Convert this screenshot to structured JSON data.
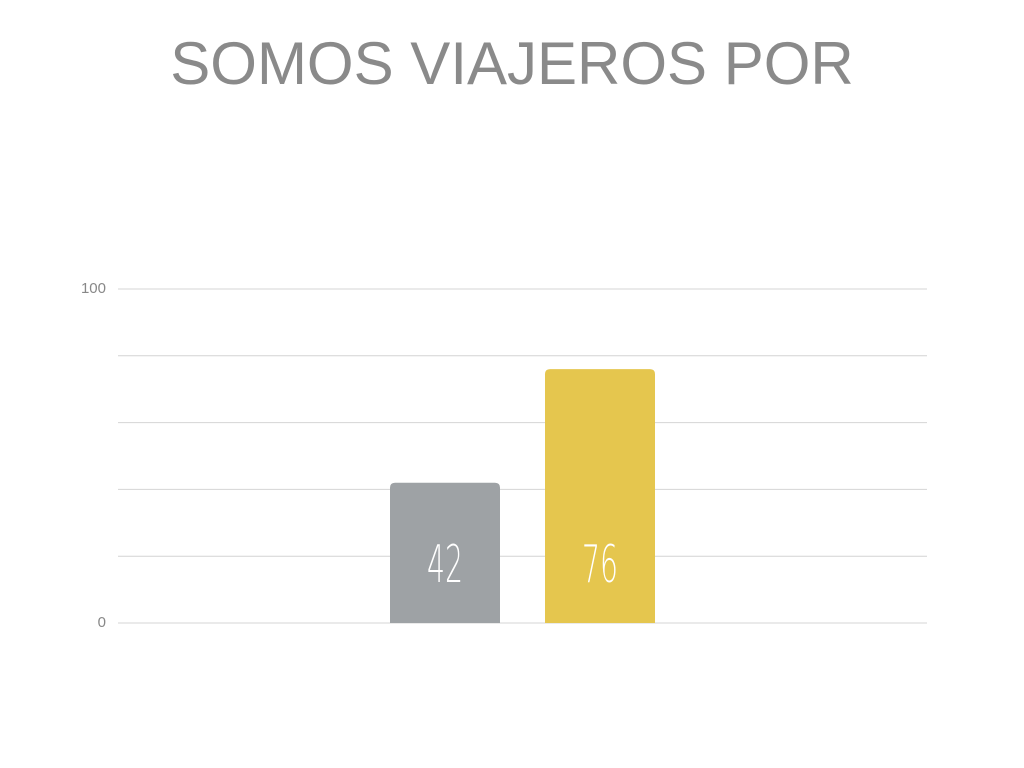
{
  "chart_data": {
    "type": "bar",
    "title": "SOMOS VIAJEROS POR",
    "categories": [
      null
    ],
    "series": [
      {
        "color": "#9ea2a5",
        "values": [
          42
        ]
      },
      {
        "color": "#e5c64e",
        "values": [
          76
        ]
      }
    ],
    "ylim": [
      0,
      100
    ],
    "yticks": [
      0,
      {
        "value": 20,
        "label": null
      },
      {
        "value": 40,
        "label": null
      },
      {
        "value": 60,
        "label": null
      },
      {
        "value": 80,
        "label": null
      },
      100
    ],
    "grid": true
  }
}
